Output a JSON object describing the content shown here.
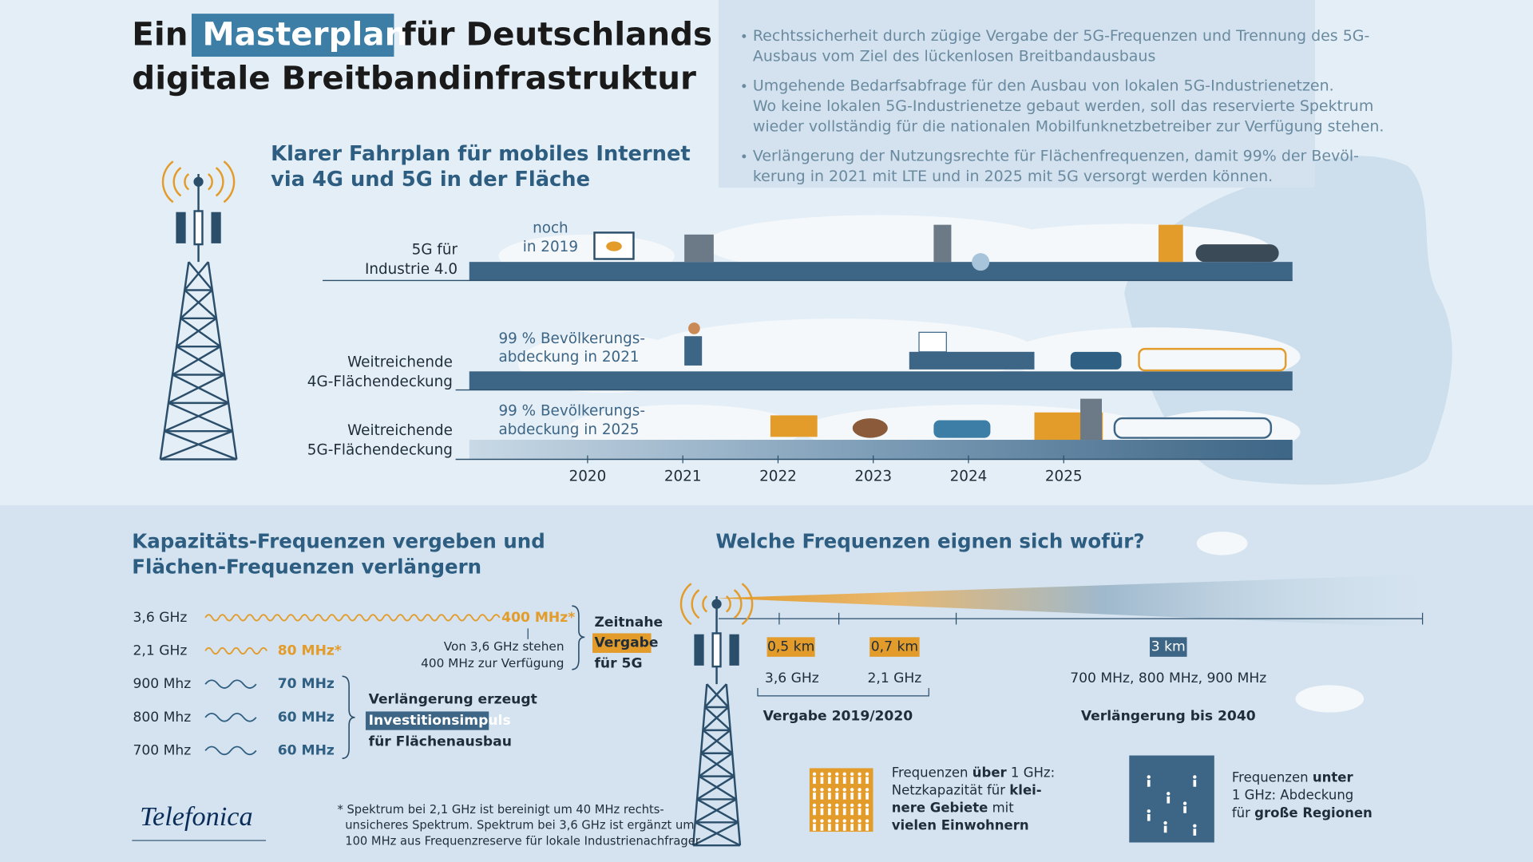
{
  "header": {
    "title_line1": [
      "Ein",
      "Masterplan",
      "für Deutschlands"
    ],
    "title_line2": "digitale Breitbandinfrastruktur"
  },
  "bullets": [
    [
      "Rechtssicherheit durch zügige Vergabe der 5G-Frequenzen und Trennung des 5G-",
      "Ausbaus vom Ziel des lückenlosen Breitbandausbaus"
    ],
    [
      "Umgehende Bedarfsabfrage für den Ausbau von lokalen 5G-Industrienetzen.",
      "Wo keine lokalen 5G-Industrienetze gebaut werden, soll das reservierte Spektrum",
      "wieder vollständig für die nationalen Mobilfunknetzbetreiber zur Verfügung stehen."
    ],
    [
      "Verlängerung der Nutzungsrechte für Flächenfrequenzen, damit 99% der Bevöl-",
      "kerung in 2021 mit LTE und in 2025 mit 5G versorgt werden können."
    ]
  ],
  "roadmap": {
    "title": [
      "Klarer Fahrplan für mobiles Internet",
      "via 4G und 5G in der Fläche"
    ],
    "rows": [
      {
        "label": [
          "5G für",
          "Industrie 4.0"
        ],
        "note": [
          "noch",
          "in 2019"
        ]
      },
      {
        "label": [
          "Weitreichende",
          "4G-Flächendeckung"
        ],
        "note": [
          "99 % Bevölkerungs-",
          "abdeckung in 2021"
        ]
      },
      {
        "label": [
          "Weitreichende",
          "5G-Flächendeckung"
        ],
        "note": [
          "99 % Bevölkerungs-",
          "abdeckung in 2025"
        ]
      }
    ],
    "years": [
      "2020",
      "2021",
      "2022",
      "2023",
      "2024",
      "2025"
    ]
  },
  "capacity": {
    "title": [
      "Kapazitäts-Frequenzen vergeben und",
      "Flächen-Frequenzen verlängern"
    ],
    "rows": [
      {
        "band": "3,6 GHz",
        "amount": "400 MHz*",
        "color": "#e39b2a"
      },
      {
        "band": "2,1 GHz",
        "amount": "80 MHz*",
        "color": "#e39b2a"
      },
      {
        "band": "900 Mhz",
        "amount": "70 MHz",
        "color": "#2f5f82"
      },
      {
        "band": "800 Mhz",
        "amount": "60 MHz",
        "color": "#2f5f82"
      },
      {
        "band": "700 Mhz",
        "amount": "60 MHz",
        "color": "#2f5f82"
      }
    ],
    "note": [
      "Von 3,6 GHz stehen",
      "400 MHz zur Verfügung"
    ],
    "group_award": [
      "Zeitnahe",
      "Vergabe",
      "für 5G"
    ],
    "group_extension": [
      "Verlängerung erzeugt",
      "Investitionsimpuls",
      "für Flächenausbau"
    ],
    "footnote": [
      "* Spektrum bei 2,1 GHz ist bereinigt um 40 MHz rechts-",
      "unsicheres Spektrum. Spektrum bei 3,6 GHz ist ergänzt um",
      "100 MHz aus Frequenzreserve für lokale Industrienachfrager"
    ],
    "logo": "Telefonica"
  },
  "usage": {
    "title": "Welche Frequenzen eignen sich wofür?",
    "ranges": [
      {
        "distance": "0,5 km",
        "band": "3,6 GHz"
      },
      {
        "distance": "0,7 km",
        "band": "2,1 GHz"
      },
      {
        "distance": "3 km",
        "band": "700 MHz, 800 MHz, 900 MHz"
      }
    ],
    "groups": [
      "Vergabe 2019/2020",
      "Verlängerung bis 2040"
    ],
    "legend_high": [
      [
        {
          "text": "Frequenzen ",
          "bold": false
        },
        {
          "text": "über",
          "bold": true
        },
        {
          "text": " 1 GHz:",
          "bold": false
        }
      ],
      [
        {
          "text": "Netzkapazität für ",
          "bold": false
        },
        {
          "text": "klei-",
          "bold": true
        }
      ],
      [
        {
          "text": "nere Gebiete",
          "bold": true
        },
        {
          "text": " mit",
          "bold": false
        }
      ],
      [
        {
          "text": "vielen Einwohnern",
          "bold": true
        }
      ]
    ],
    "legend_low": [
      [
        {
          "text": "Frequenzen ",
          "bold": false
        },
        {
          "text": "unter",
          "bold": true
        }
      ],
      [
        {
          "text": "1 GHz: Abdeckung",
          "bold": false
        }
      ],
      [
        {
          "text": "für ",
          "bold": false
        },
        {
          "text": "große Regionen",
          "bold": true
        }
      ]
    ]
  }
}
